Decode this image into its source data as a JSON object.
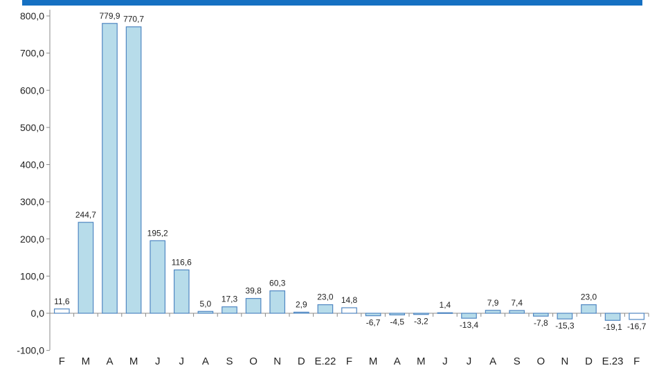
{
  "chart_data": {
    "type": "bar",
    "categories": [
      "F",
      "M",
      "A",
      "M",
      "J",
      "J",
      "A",
      "S",
      "O",
      "N",
      "D",
      "E.22",
      "F",
      "M",
      "A",
      "M",
      "J",
      "J",
      "A",
      "S",
      "O",
      "N",
      "D",
      "E.23",
      "F"
    ],
    "values": [
      11.6,
      244.7,
      779.9,
      770.7,
      195.2,
      116.6,
      5.0,
      17.3,
      39.8,
      60.3,
      2.9,
      23.0,
      14.8,
      -6.7,
      -4.5,
      -3.2,
      1.4,
      -13.4,
      7.9,
      7.4,
      -7.8,
      -15.3,
      23.0,
      -19.1,
      -16.7
    ],
    "value_labels": [
      "11,6",
      "244,7",
      "779,9",
      "770,7",
      "195,2",
      "116,6",
      "5,0",
      "17,3",
      "39,8",
      "60,3",
      "2,9",
      "23,0",
      "14,8",
      "-6,7",
      "-4,5",
      "-3,2",
      "1,4",
      "-13,4",
      "7,9",
      "7,4",
      "-7,8",
      "-15,3",
      "23,0",
      "-19,1",
      "-16,7"
    ],
    "filled": [
      false,
      true,
      true,
      true,
      true,
      true,
      true,
      true,
      true,
      true,
      true,
      true,
      false,
      true,
      true,
      true,
      true,
      true,
      true,
      true,
      true,
      true,
      true,
      true,
      false
    ],
    "yticks": [
      800,
      700,
      600,
      500,
      400,
      300,
      200,
      100,
      0,
      -100
    ],
    "ytick_labels": [
      "800,0",
      "700,0",
      "600,0",
      "500,0",
      "400,0",
      "300,0",
      "200,0",
      "100,0",
      "0,0",
      "-100,0"
    ],
    "ylim": [
      -100,
      800
    ],
    "grid": false,
    "colors": {
      "bar_fill": "#b7dcea",
      "bar_stroke": "#4f86c2",
      "hollow_fill": "#ffffff",
      "axis": "#888888",
      "header": "#1570c2"
    }
  }
}
